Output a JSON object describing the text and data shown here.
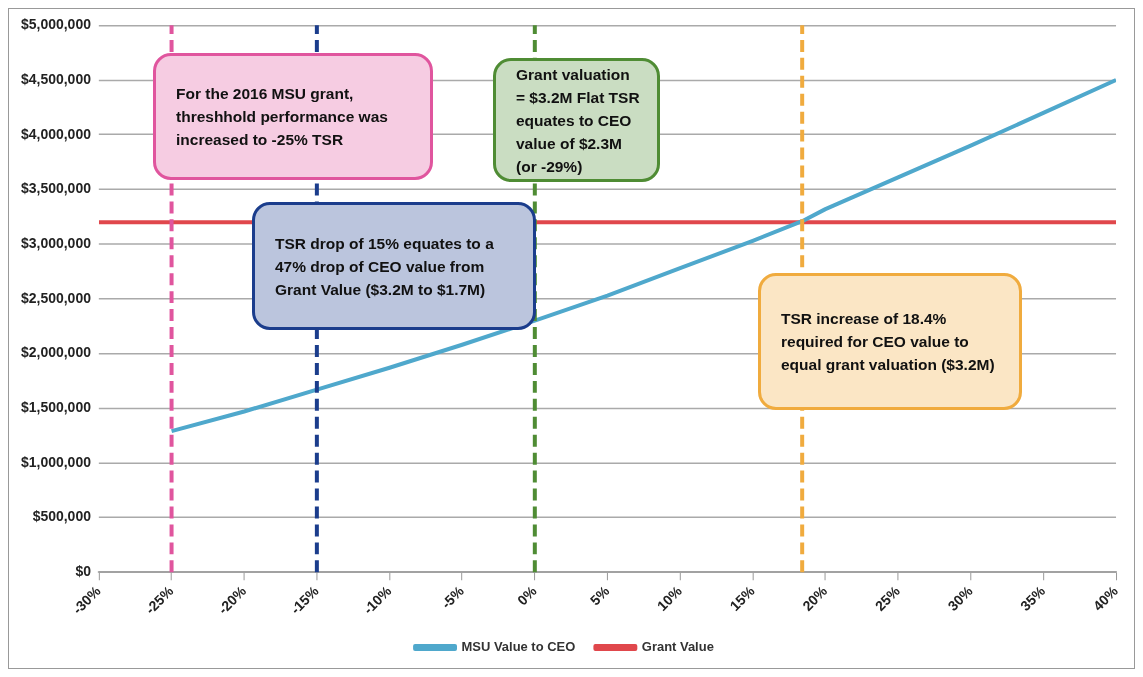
{
  "chart_data": {
    "type": "line",
    "x": [
      -25,
      -20,
      -15,
      -10,
      -5,
      0,
      5,
      10,
      15,
      18.4,
      20,
      25,
      30,
      35,
      40
    ],
    "series": [
      {
        "name": "MSU Value to CEO",
        "color": "#4fa8cc",
        "values": [
          1290000,
          1470000,
          1670000,
          1870000,
          2080000,
          2300000,
          2530000,
          2780000,
          3030000,
          3210000,
          3320000,
          3610000,
          3900000,
          4200000,
          4500000
        ]
      },
      {
        "name": "Grant Value",
        "color": "#e0474c",
        "x": [
          -30,
          40
        ],
        "values": [
          3200000,
          3200000
        ]
      }
    ],
    "xlim": [
      -30,
      40
    ],
    "xticks": [
      {
        "value": -30,
        "label": "-30%"
      },
      {
        "value": -25,
        "label": "-25%"
      },
      {
        "value": -20,
        "label": "-20%"
      },
      {
        "value": -15,
        "label": "-15%"
      },
      {
        "value": -10,
        "label": "-10%"
      },
      {
        "value": -5,
        "label": "-5%"
      },
      {
        "value": 0,
        "label": "0%"
      },
      {
        "value": 5,
        "label": "5%"
      },
      {
        "value": 10,
        "label": "10%"
      },
      {
        "value": 15,
        "label": "15%"
      },
      {
        "value": 20,
        "label": "20%"
      },
      {
        "value": 25,
        "label": "25%"
      },
      {
        "value": 30,
        "label": "30%"
      },
      {
        "value": 35,
        "label": "35%"
      },
      {
        "value": 40,
        "label": "40%"
      }
    ],
    "ylim": [
      0,
      5000000
    ],
    "yticks": [
      {
        "value": 0,
        "label": "$0"
      },
      {
        "value": 500000,
        "label": "$500,000"
      },
      {
        "value": 1000000,
        "label": "$1,000,000"
      },
      {
        "value": 1500000,
        "label": "$1,500,000"
      },
      {
        "value": 2000000,
        "label": "$2,000,000"
      },
      {
        "value": 2500000,
        "label": "$2,500,000"
      },
      {
        "value": 3000000,
        "label": "$3,000,000"
      },
      {
        "value": 3500000,
        "label": "$3,500,000"
      },
      {
        "value": 4000000,
        "label": "$4,000,000"
      },
      {
        "value": 4500000,
        "label": "$4,500,000"
      },
      {
        "value": 5000000,
        "label": "$5,000,000"
      }
    ],
    "ref_lines": [
      {
        "axis": "x",
        "value": -25,
        "color": "#e0559e",
        "line_style": "dashed"
      },
      {
        "axis": "x",
        "value": -15,
        "color": "#1b3d8c",
        "line_style": "dashed"
      },
      {
        "axis": "x",
        "value": 0,
        "color": "#4f8c34",
        "line_style": "dashed"
      },
      {
        "axis": "x",
        "value": 18.4,
        "color": "#f0ab3e",
        "line_style": "dashed"
      }
    ],
    "annotations": [
      "For the 2016 MSU grant, threshhold performance was increased to -25% TSR",
      "TSR drop of 15% equates to a 47% drop of CEO value from Grant Value ($3.2M to $1.7M)",
      "Grant valuation = $3.2M Flat TSR equates to CEO value of $2.3M (or -29%)",
      "TSR increase of 18.4% required for CEO value to equal grant valuation ($3.2M)"
    ],
    "grid": "y",
    "legend": "bottom"
  }
}
